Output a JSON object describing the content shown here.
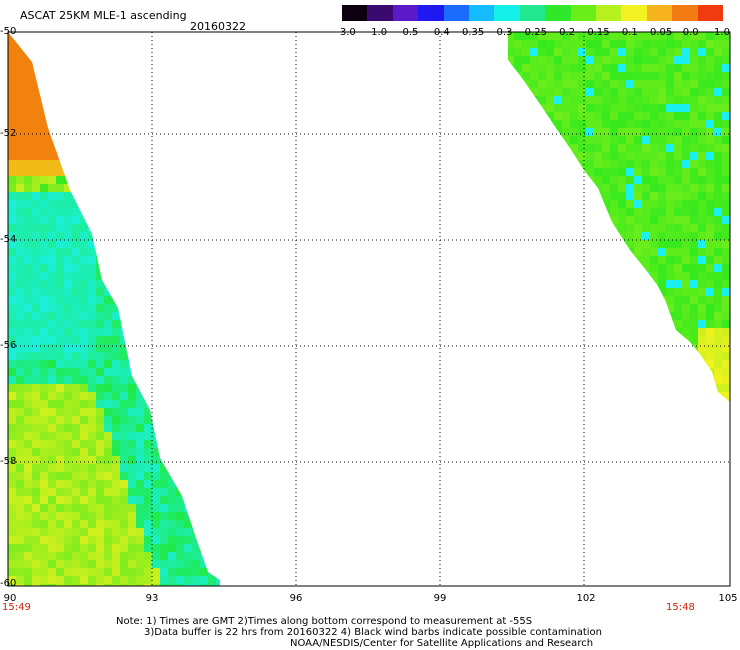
{
  "header": {
    "title": "ASCAT 25KM MLE-1 ascending",
    "date": "20160322"
  },
  "colorbar": {
    "labels": [
      "-3.0",
      "-1.0",
      "-0.5",
      "-0.4",
      "-0.35",
      "-0.3",
      "-0.25",
      "-0.2",
      "-0.15",
      "-0.1",
      "-0.05",
      "0.0",
      "1.0"
    ],
    "colors": [
      "#0c0010",
      "#3b0a6e",
      "#5a1ac8",
      "#1f18f0",
      "#1a6cff",
      "#14bcff",
      "#14f0e8",
      "#22e890",
      "#30e82a",
      "#6aee1a",
      "#b6f01e",
      "#f2f222",
      "#f8b41e",
      "#f47a14",
      "#f03a10"
    ]
  },
  "axes": {
    "y_ticks": [
      "-50",
      "-52",
      "-54",
      "-56",
      "-58",
      "-60"
    ],
    "x_ticks": [
      "90",
      "93",
      "96",
      "99",
      "102",
      "105"
    ]
  },
  "times": {
    "left": "15:49",
    "right": "15:48"
  },
  "notes": {
    "line1": "Note: 1) Times are GMT 2)Times along bottom correspond to measurement at -55S",
    "line2": "3)Data buffer is 22 hrs from 20160322 4) Black wind barbs indicate possible contamination",
    "line3": "NOAA/NESDIS/Center for Satellite Applications and Research"
  },
  "swath_colors": {
    "orange": "#f2820e",
    "yellow": "#f2f21e",
    "green": "#22e81e",
    "cyan": "#1af0f0"
  }
}
